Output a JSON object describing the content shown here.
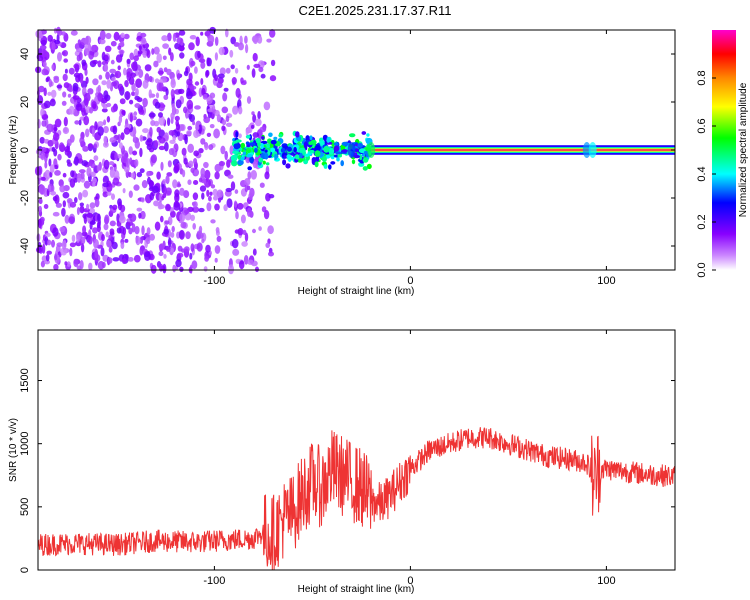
{
  "title": "C2E1.2025.231.17.37.R11",
  "chart_data": [
    {
      "type": "heatmap",
      "xlabel": "Height of straight line (km)",
      "ylabel": "Frequency (Hz)",
      "xlim": [
        -190,
        135
      ],
      "ylim": [
        -50,
        50
      ],
      "x_ticks": [
        -100,
        0,
        100
      ],
      "y_ticks": [
        -40,
        -20,
        0,
        20,
        40
      ],
      "colorbar": {
        "label": "Normalized spectral amplitude",
        "range": [
          0,
          1
        ],
        "ticks": [
          0.0,
          0.2,
          0.4,
          0.6,
          0.8
        ],
        "tick_labels": [
          "0.0",
          "0.2",
          "0.4",
          "0.6",
          "0.8"
        ],
        "colors": [
          "#ffffff",
          "#8800ff",
          "#0000ff",
          "#00ffff",
          "#00ff00",
          "#ffff00",
          "#ff8800",
          "#ff0000",
          "#ff00ff"
        ]
      },
      "regions": [
        {
          "x_range": [
            -190,
            -70
          ],
          "description_level": "broadband noise",
          "amplitude": 0.15
        },
        {
          "x_range": [
            -90,
            -20
          ],
          "frequency_center": 0,
          "frequency_spread": 8,
          "amplitude": 0.4
        },
        {
          "x_range": [
            -20,
            135
          ],
          "frequency_center": 0,
          "frequency_spread": 2,
          "amplitude": 0.95
        }
      ]
    },
    {
      "type": "line",
      "xlabel": "Height of straight line (km)",
      "ylabel": "SNR (10 * v/v)",
      "xlim": [
        -190,
        135
      ],
      "ylim": [
        0,
        1900
      ],
      "x_ticks": [
        -100,
        0,
        100
      ],
      "y_ticks": [
        0,
        500,
        1000,
        1500
      ],
      "series": [
        {
          "color": "#ee3333",
          "x": [
            -190,
            -170,
            -150,
            -130,
            -110,
            -90,
            -80,
            -75,
            -70,
            -65,
            -60,
            -55,
            -50,
            -45,
            -40,
            -35,
            -30,
            -25,
            -20,
            -15,
            -10,
            -5,
            0,
            10,
            20,
            30,
            40,
            50,
            60,
            70,
            80,
            90,
            94,
            96,
            100,
            110,
            120,
            135
          ],
          "y": [
            200,
            210,
            200,
            230,
            220,
            240,
            250,
            300,
            280,
            400,
            450,
            600,
            700,
            650,
            800,
            750,
            700,
            650,
            550,
            520,
            600,
            700,
            800,
            950,
            1000,
            1050,
            1050,
            1000,
            950,
            900,
            880,
            850,
            700,
            800,
            800,
            780,
            760,
            740
          ]
        }
      ]
    }
  ]
}
